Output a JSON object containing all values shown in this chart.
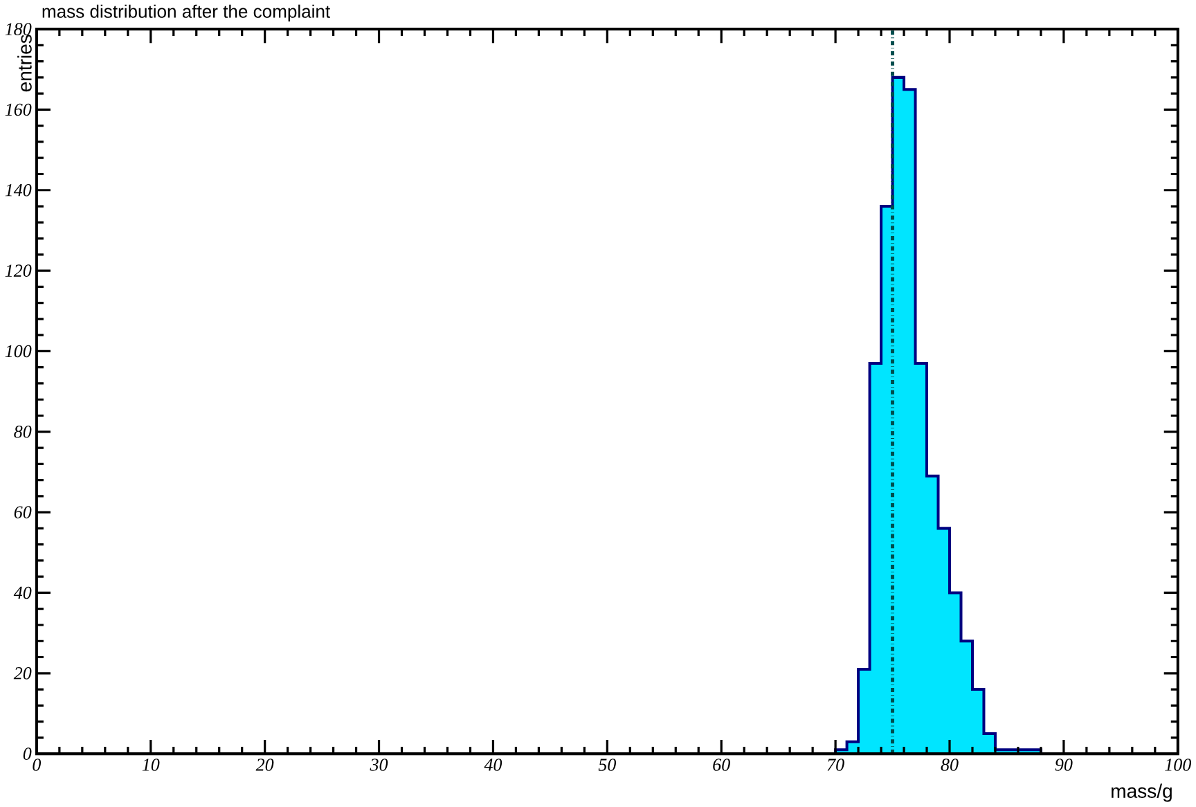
{
  "chart_data": {
    "type": "histogram",
    "title": "mass distribution after the complaint",
    "xlabel": "mass/g",
    "ylabel": "entries",
    "bins": [
      69,
      70,
      71,
      72,
      73,
      74,
      75,
      76,
      77,
      78,
      79,
      80,
      81,
      82,
      83,
      84,
      85,
      86,
      87,
      88,
      89
    ],
    "values": [
      0,
      1,
      3,
      21,
      97,
      136,
      168,
      165,
      97,
      69,
      56,
      40,
      28,
      16,
      5,
      1,
      1,
      1,
      1,
      0
    ],
    "color": "#00e5ff",
    "xlim": [
      0,
      100
    ],
    "xticks": [
      0,
      10,
      20,
      30,
      40,
      50,
      60,
      70,
      80,
      90,
      100
    ],
    "ylim": [
      0,
      180
    ],
    "yticks": [
      0,
      20,
      40,
      60,
      80,
      100,
      120,
      140,
      160,
      180
    ],
    "ref_lines": [
      {
        "axis": "x",
        "value": 75,
        "line_style": "dashdot",
        "color": "#004d4d"
      }
    ]
  }
}
